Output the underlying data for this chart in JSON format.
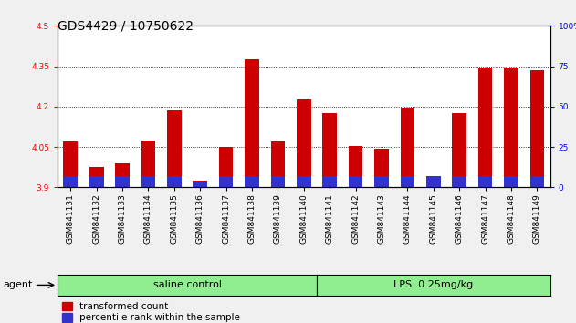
{
  "title": "GDS4429 / 10750622",
  "samples": [
    "GSM841131",
    "GSM841132",
    "GSM841133",
    "GSM841134",
    "GSM841135",
    "GSM841136",
    "GSM841137",
    "GSM841138",
    "GSM841139",
    "GSM841140",
    "GSM841141",
    "GSM841142",
    "GSM841143",
    "GSM841144",
    "GSM841145",
    "GSM841146",
    "GSM841147",
    "GSM841148",
    "GSM841149"
  ],
  "transformed_count": [
    4.07,
    3.975,
    3.99,
    4.075,
    4.185,
    3.925,
    4.05,
    4.375,
    4.07,
    4.225,
    4.175,
    4.055,
    4.045,
    4.195,
    3.925,
    4.175,
    4.345,
    4.345,
    4.335
  ],
  "percentile_rank": [
    7,
    7,
    7,
    7,
    7,
    3,
    7,
    7,
    7,
    7,
    7,
    7,
    7,
    7,
    7,
    7,
    7,
    7,
    7
  ],
  "saline_count": 10,
  "lps_count": 9,
  "ylim_left": [
    3.9,
    4.5
  ],
  "ylim_right": [
    0,
    100
  ],
  "yticks_left_labeled": [
    3.9,
    4.05,
    4.2,
    4.35,
    4.5
  ],
  "yticks_right": [
    0,
    25,
    50,
    75,
    100
  ],
  "bar_color_red": "#CC0000",
  "bar_color_blue": "#3333CC",
  "bar_width": 0.55,
  "base_value": 3.9,
  "background_color": "#f0f0f0",
  "plot_bg_color": "#ffffff",
  "title_fontsize": 10,
  "tick_fontsize": 6.5,
  "group_fontsize": 8,
  "legend_fontsize": 7.5,
  "saline_label": "saline control",
  "lps_label": "LPS  0.25mg/kg",
  "group_bg": "#90EE90"
}
